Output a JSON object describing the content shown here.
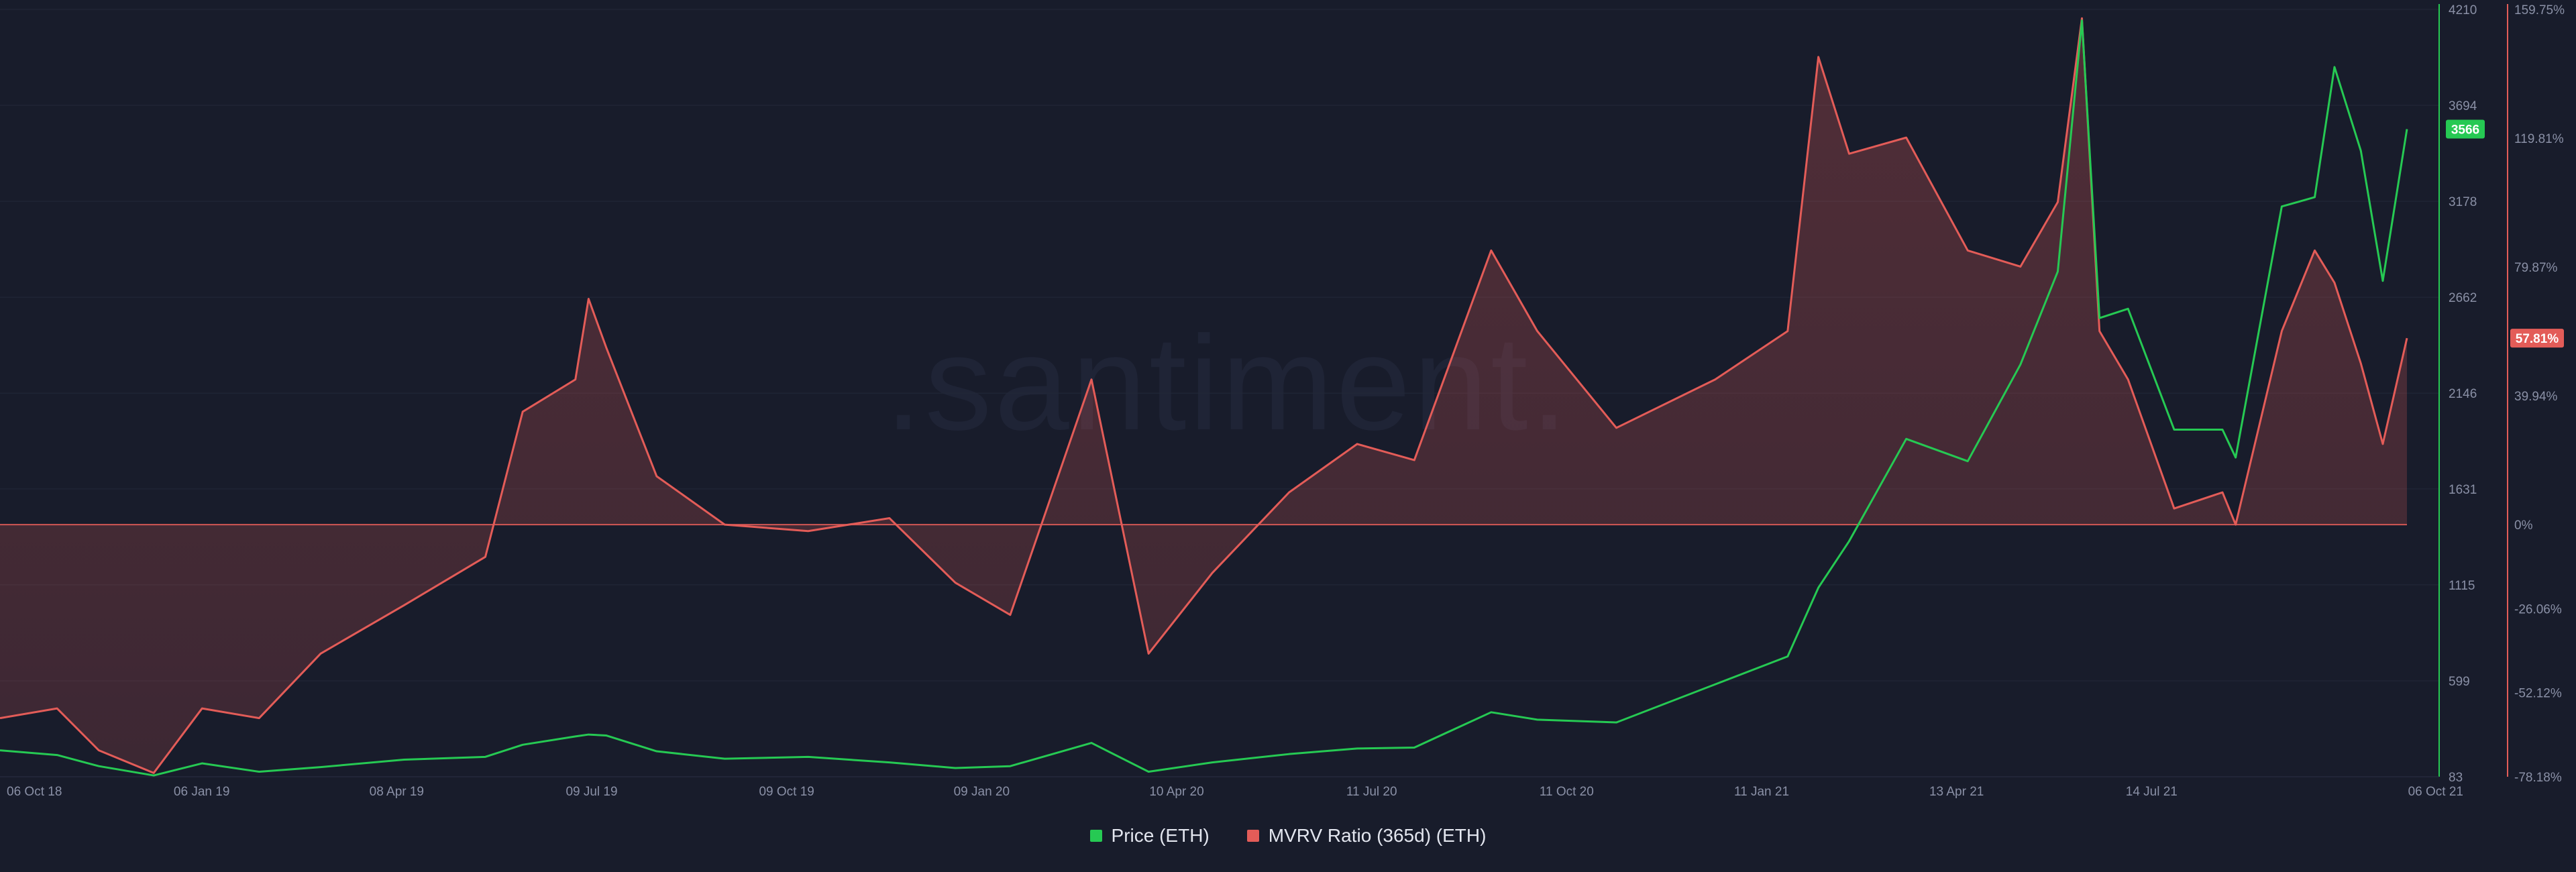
{
  "watermark": ".santiment.",
  "chart_data": {
    "type": "line",
    "x_start": "2018-10-06",
    "x_end": "2021-10-06",
    "x_tick_labels": [
      "06 Oct 18",
      "06 Jan 19",
      "08 Apr 19",
      "09 Jul 19",
      "09 Oct 19",
      "09 Jan 20",
      "10 Apr 20",
      "11 Jul 20",
      "11 Oct 20",
      "11 Jan 21",
      "13 Apr 21",
      "14 Jul 21",
      "06 Oct 21"
    ],
    "y_left": {
      "label": "Price (ETH)",
      "range": [
        83,
        4210
      ],
      "tick_labels": [
        "4210",
        "3694",
        "3178",
        "2662",
        "2146",
        "1631",
        "1115",
        "599",
        "83"
      ],
      "current_value_label": "3566"
    },
    "y_right": {
      "label": "MVRV Ratio (365d) (ETH)",
      "range": [
        -78.18,
        159.75
      ],
      "tick_labels": [
        "159.75%",
        "119.81%",
        "79.87%",
        "39.94%",
        "0%",
        "-26.06%",
        "-52.12%",
        "-78.18%"
      ],
      "current_value_label": "57.81%"
    },
    "legend_position": "bottom-center",
    "series": [
      {
        "name": "Price (ETH)",
        "axis": "left",
        "color": "#26c953",
        "points": [
          [
            "2018-10-06",
            225
          ],
          [
            "2018-11-01",
            200
          ],
          [
            "2018-11-20",
            140
          ],
          [
            "2018-12-15",
            90
          ],
          [
            "2019-01-06",
            155
          ],
          [
            "2019-02-01",
            110
          ],
          [
            "2019-03-01",
            135
          ],
          [
            "2019-04-08",
            175
          ],
          [
            "2019-05-15",
            190
          ],
          [
            "2019-06-01",
            255
          ],
          [
            "2019-06-25",
            300
          ],
          [
            "2019-07-01",
            310
          ],
          [
            "2019-07-09",
            305
          ],
          [
            "2019-08-01",
            220
          ],
          [
            "2019-09-01",
            180
          ],
          [
            "2019-10-09",
            190
          ],
          [
            "2019-11-15",
            160
          ],
          [
            "2019-12-15",
            130
          ],
          [
            "2020-01-09",
            140
          ],
          [
            "2020-02-15",
            265
          ],
          [
            "2020-03-12",
            110
          ],
          [
            "2020-04-10",
            160
          ],
          [
            "2020-05-15",
            205
          ],
          [
            "2020-06-15",
            235
          ],
          [
            "2020-07-11",
            240
          ],
          [
            "2020-08-15",
            430
          ],
          [
            "2020-09-05",
            390
          ],
          [
            "2020-10-11",
            375
          ],
          [
            "2020-11-25",
            580
          ],
          [
            "2020-12-28",
            730
          ],
          [
            "2021-01-11",
            1100
          ],
          [
            "2021-01-25",
            1350
          ],
          [
            "2021-02-20",
            1900
          ],
          [
            "2021-03-20",
            1780
          ],
          [
            "2021-04-13",
            2300
          ],
          [
            "2021-04-30",
            2800
          ],
          [
            "2021-05-11",
            4150
          ],
          [
            "2021-05-19",
            2550
          ],
          [
            "2021-06-01",
            2600
          ],
          [
            "2021-06-22",
            1950
          ],
          [
            "2021-07-14",
            1950
          ],
          [
            "2021-07-20",
            1800
          ],
          [
            "2021-08-10",
            3150
          ],
          [
            "2021-08-25",
            3200
          ],
          [
            "2021-09-03",
            3900
          ],
          [
            "2021-09-15",
            3450
          ],
          [
            "2021-09-25",
            2750
          ],
          [
            "2021-10-06",
            3566
          ]
        ]
      },
      {
        "name": "MVRV Ratio (365d) (ETH)",
        "axis": "right",
        "color": "#e35c58",
        "points": [
          [
            "2018-10-06",
            -60
          ],
          [
            "2018-11-01",
            -57
          ],
          [
            "2018-11-20",
            -70
          ],
          [
            "2018-12-15",
            -77
          ],
          [
            "2019-01-06",
            -57
          ],
          [
            "2019-02-01",
            -60
          ],
          [
            "2019-03-01",
            -40
          ],
          [
            "2019-04-08",
            -25
          ],
          [
            "2019-05-15",
            -10
          ],
          [
            "2019-06-01",
            35
          ],
          [
            "2019-06-25",
            45
          ],
          [
            "2019-07-01",
            70
          ],
          [
            "2019-07-09",
            55
          ],
          [
            "2019-08-01",
            15
          ],
          [
            "2019-09-01",
            0
          ],
          [
            "2019-10-09",
            -2
          ],
          [
            "2019-11-15",
            2
          ],
          [
            "2019-12-15",
            -18
          ],
          [
            "2020-01-09",
            -28
          ],
          [
            "2020-02-15",
            45
          ],
          [
            "2020-03-12",
            -40
          ],
          [
            "2020-04-10",
            -15
          ],
          [
            "2020-05-15",
            10
          ],
          [
            "2020-06-15",
            25
          ],
          [
            "2020-07-11",
            20
          ],
          [
            "2020-08-15",
            85
          ],
          [
            "2020-09-05",
            60
          ],
          [
            "2020-10-11",
            30
          ],
          [
            "2020-11-25",
            45
          ],
          [
            "2020-12-28",
            60
          ],
          [
            "2021-01-11",
            145
          ],
          [
            "2021-01-25",
            115
          ],
          [
            "2021-02-20",
            120
          ],
          [
            "2021-03-20",
            85
          ],
          [
            "2021-04-13",
            80
          ],
          [
            "2021-04-30",
            100
          ],
          [
            "2021-05-11",
            157
          ],
          [
            "2021-05-19",
            60
          ],
          [
            "2021-06-01",
            45
          ],
          [
            "2021-06-22",
            5
          ],
          [
            "2021-07-14",
            10
          ],
          [
            "2021-07-20",
            0
          ],
          [
            "2021-08-10",
            60
          ],
          [
            "2021-08-25",
            85
          ],
          [
            "2021-09-03",
            75
          ],
          [
            "2021-09-15",
            50
          ],
          [
            "2021-09-25",
            25
          ],
          [
            "2021-10-06",
            57.81
          ]
        ]
      }
    ]
  }
}
